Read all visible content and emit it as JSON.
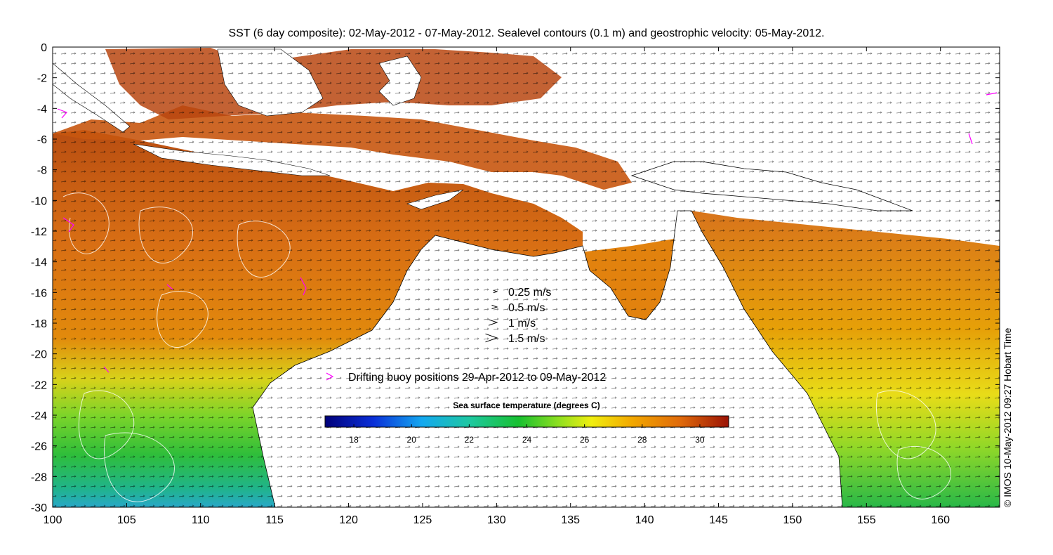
{
  "title": "SST (6 day composite): 02-May-2012 - 07-May-2012. Sealevel contours (0.1 m) and geostrophic velocity: 05-May-2012.",
  "credit": "© IMOS 10-May-2012 09:27 Hobart Time",
  "legend": {
    "velocity": [
      {
        "label": "0.25 m/s",
        "speed": 0.25
      },
      {
        "label": "0.5 m/s",
        "speed": 0.5
      },
      {
        "label": "1 m/s",
        "speed": 1
      },
      {
        "label": "1.5 m/s",
        "speed": 1.5
      }
    ],
    "buoy_label": "Drifting buoy positions 29-Apr-2012 to 09-May-2012"
  },
  "colorbar": {
    "title": "Sea surface temperature (degrees C)",
    "range": [
      17,
      31
    ],
    "ticks": [
      "18",
      "20",
      "22",
      "24",
      "26",
      "28",
      "30"
    ],
    "tick_values": [
      18,
      20,
      22,
      24,
      26,
      28,
      30
    ]
  },
  "chart_data": {
    "type": "heatmap",
    "x_ticks": [
      "100",
      "105",
      "110",
      "115",
      "120",
      "125",
      "130",
      "135",
      "140",
      "145",
      "150",
      "155",
      "160"
    ],
    "x_tick_values": [
      100,
      105,
      110,
      115,
      120,
      125,
      130,
      135,
      140,
      145,
      150,
      155,
      160
    ],
    "y_ticks": [
      "0",
      "-2",
      "-4",
      "-6",
      "-8",
      "-10",
      "-12",
      "-14",
      "-16",
      "-18",
      "-20",
      "-22",
      "-24",
      "-26",
      "-28",
      "-30"
    ],
    "y_tick_values": [
      0,
      -2,
      -4,
      -6,
      -8,
      -10,
      -12,
      -14,
      -16,
      -18,
      -20,
      -22,
      -24,
      -26,
      -28,
      -30
    ],
    "xlim": [
      100,
      164
    ],
    "ylim": [
      -30,
      0
    ],
    "colors": {
      "land": "#ffffff",
      "coast": "#000000",
      "contour": "#ffffff",
      "buoy": "#ff00ff"
    }
  }
}
